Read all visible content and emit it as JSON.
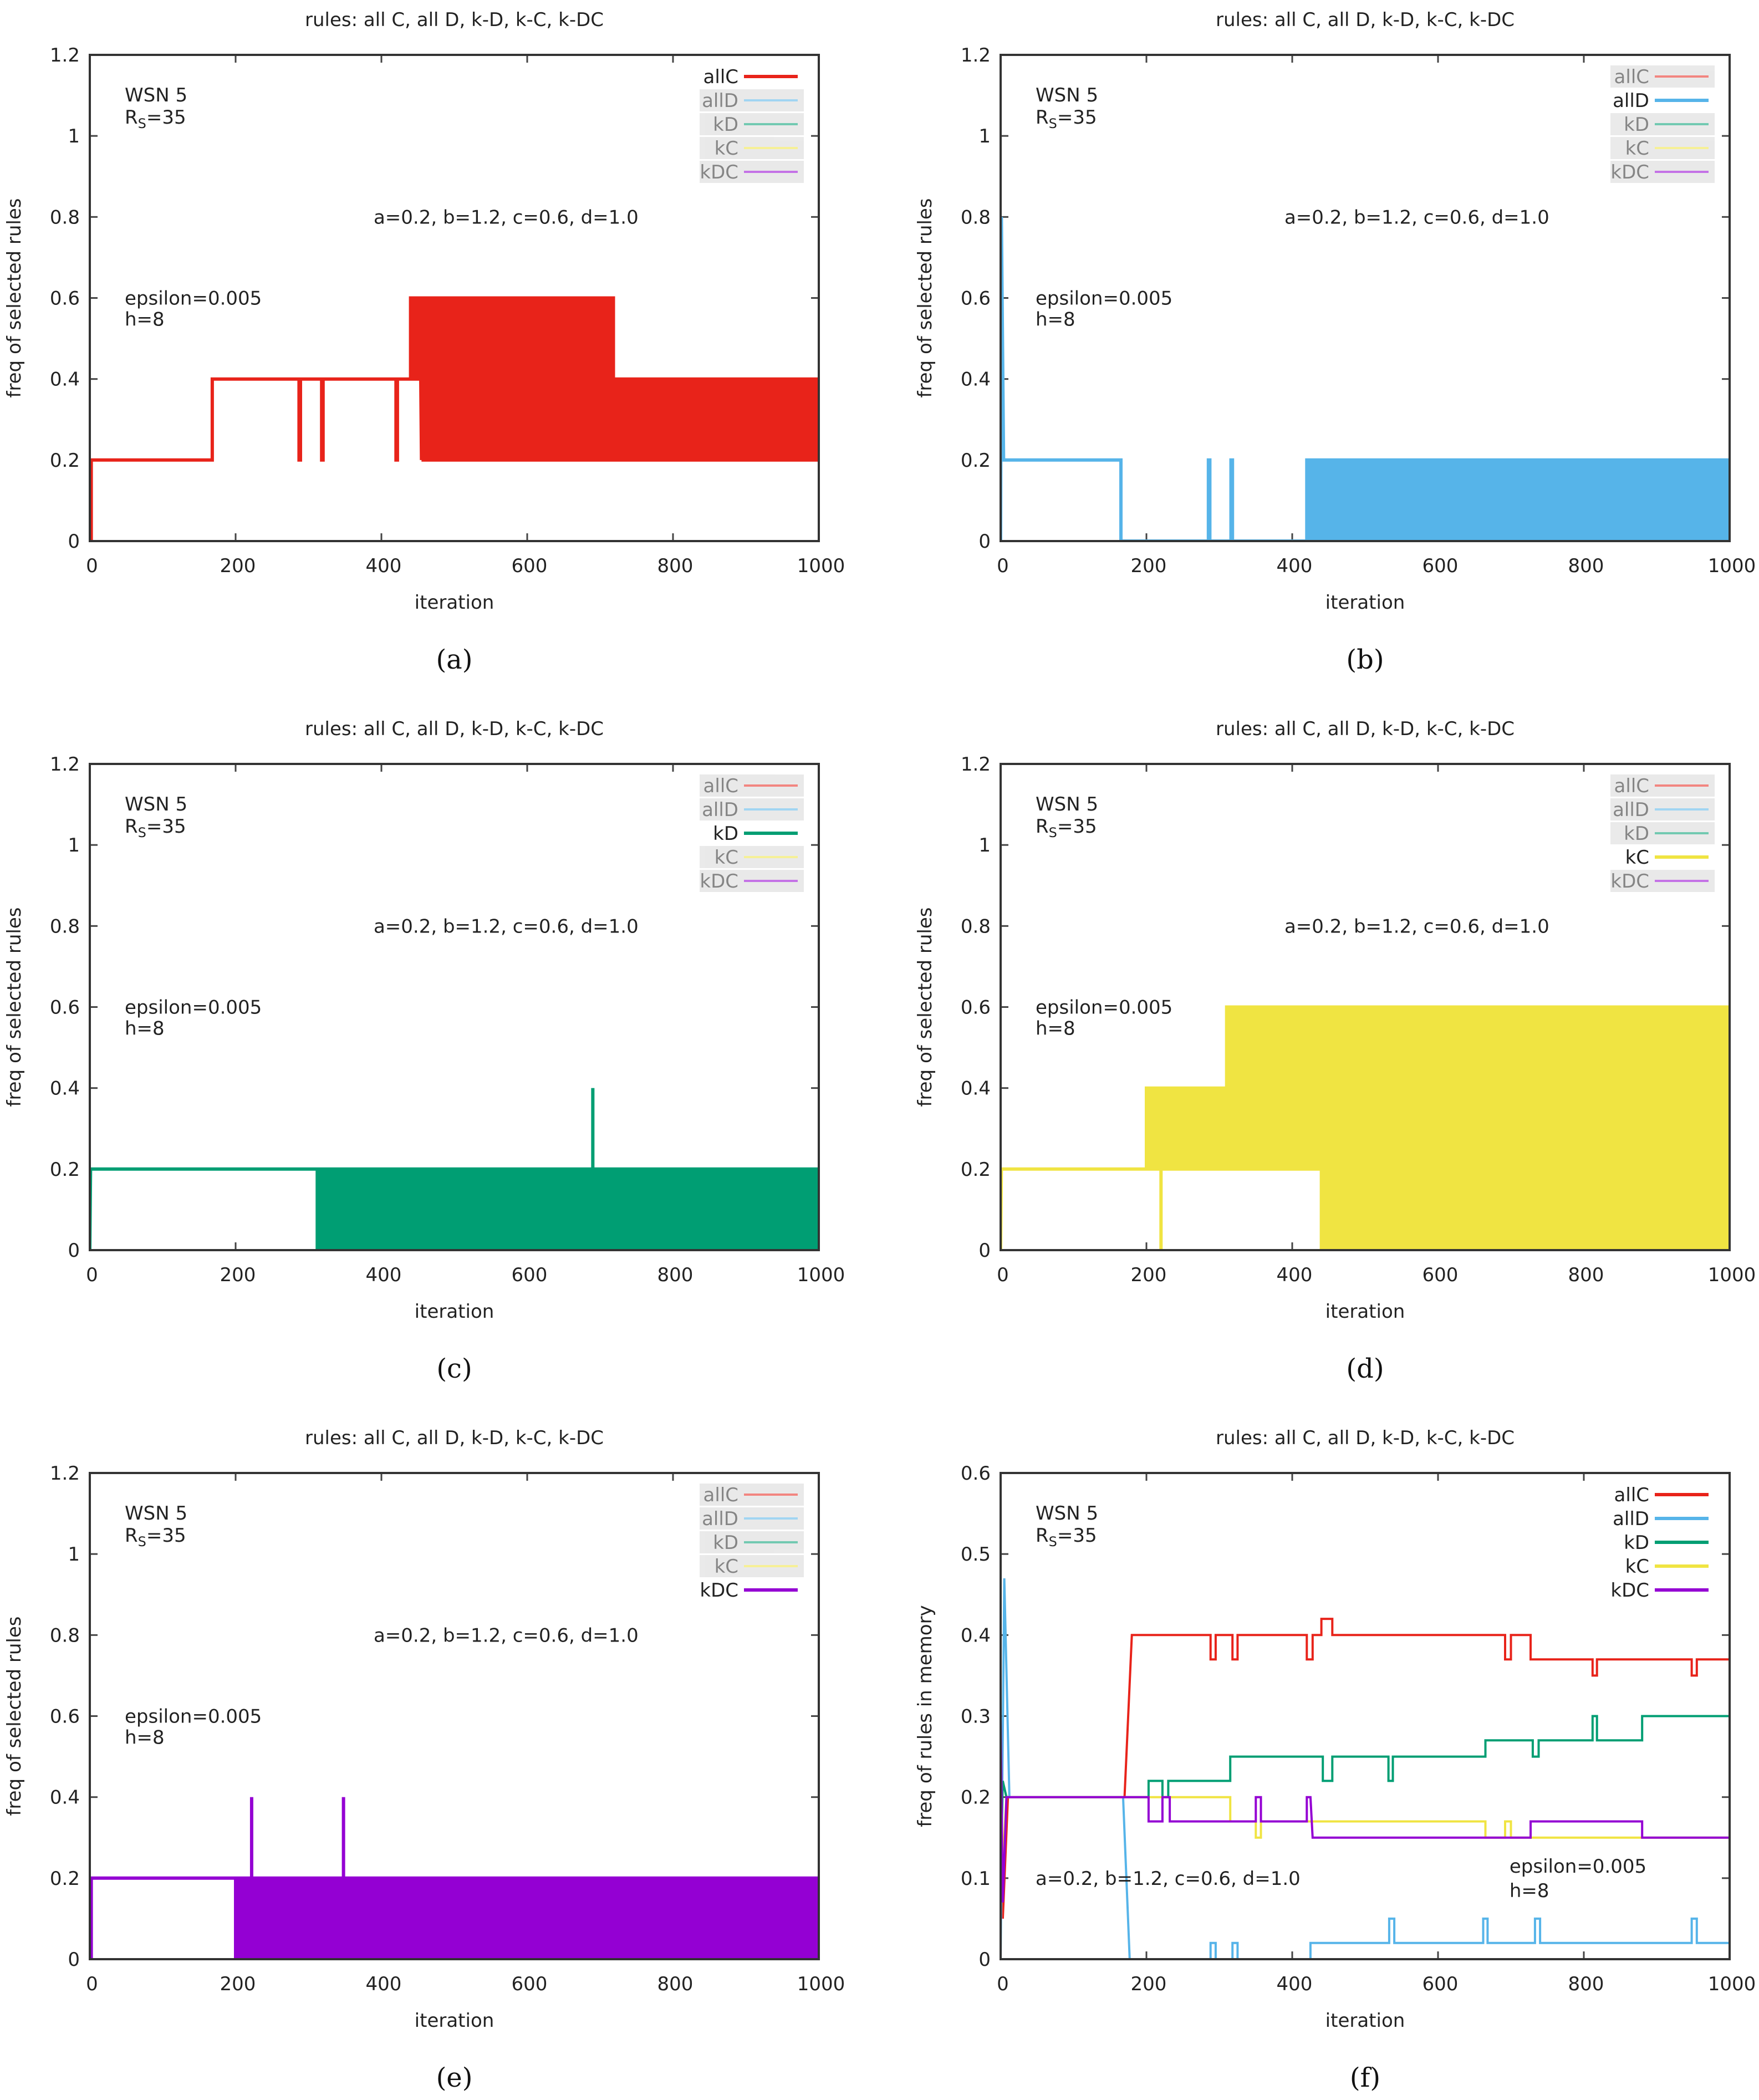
{
  "legend_names": [
    "allC",
    "allD",
    "kD",
    "kC",
    "kDC"
  ],
  "colors": {
    "allC": "#e8231a",
    "allD": "#56b4e9",
    "kD": "#009e73",
    "kC": "#f0e442",
    "kDC": "#9400d3"
  },
  "annotations": {
    "wsn": "WSN 5",
    "rs_main": "R",
    "rs_sub": "S",
    "rs_value": "=35",
    "params": "a=0.2, b=1.2, c=0.6, d=1.0",
    "epsilon": "epsilon=0.005",
    "h": "h=8"
  },
  "chart_data": [
    {
      "id": "a",
      "caption": "(a)",
      "type": "line",
      "title": "rules: all C, all D, k-D, k-C, k-DC",
      "xlabel": "iteration",
      "ylabel": "freq of selected rules",
      "xlim": [
        0,
        1000
      ],
      "ylim": [
        0,
        1.2
      ],
      "xticks": [
        "0",
        "200",
        "400",
        "600",
        "800",
        "1000"
      ],
      "yticks": [
        "0",
        "0.2",
        "0.4",
        "0.6",
        "0.8",
        "1",
        "1.2"
      ],
      "highlight": "allC",
      "series": [
        {
          "name": "allC",
          "points": [
            [
              0,
              0
            ],
            [
              2,
              0
            ],
            [
              2,
              0.2
            ],
            [
              168,
              0.2
            ],
            [
              168,
              0.4
            ],
            [
              287,
              0.4
            ],
            [
              287,
              0.2
            ],
            [
              289,
              0.2
            ],
            [
              289,
              0.4
            ],
            [
              318,
              0.4
            ],
            [
              318,
              0.2
            ],
            [
              320,
              0.2
            ],
            [
              320,
              0.4
            ],
            [
              420,
              0.4
            ],
            [
              420,
              0.2
            ],
            [
              422,
              0.2
            ],
            [
              422,
              0.4
            ],
            [
              440,
              0.4
            ]
          ],
          "oscillations": [
            [
              440,
              455,
              0.4,
              0.6,
              4
            ],
            [
              455,
              720,
              0.2,
              0.6,
              4.5
            ],
            [
              720,
              1000,
              0.2,
              0.4,
              4.5
            ]
          ]
        }
      ]
    },
    {
      "id": "b",
      "caption": "(b)",
      "type": "line",
      "title": "rules: all C, all D, k-D, k-C, k-DC",
      "xlabel": "iteration",
      "ylabel": "freq of selected rules",
      "xlim": [
        0,
        1000
      ],
      "ylim": [
        0,
        1.2
      ],
      "xticks": [
        "0",
        "200",
        "400",
        "600",
        "800",
        "1000"
      ],
      "yticks": [
        "0",
        "0.2",
        "0.4",
        "0.6",
        "0.8",
        "1",
        "1.2"
      ],
      "highlight": "allD",
      "series": [
        {
          "name": "allD",
          "points": [
            [
              0,
              0
            ],
            [
              1,
              0.8
            ],
            [
              4,
              0.2
            ],
            [
              165,
              0.2
            ],
            [
              165,
              0
            ],
            [
              285,
              0
            ],
            [
              285,
              0.2
            ],
            [
              287,
              0.2
            ],
            [
              287,
              0
            ],
            [
              316,
              0
            ],
            [
              316,
              0.2
            ],
            [
              318,
              0.2
            ],
            [
              318,
              0
            ],
            [
              420,
              0
            ]
          ],
          "oscillations": [
            [
              420,
              1000,
              0,
              0.2,
              4.5
            ]
          ]
        }
      ]
    },
    {
      "id": "c",
      "caption": "(c)",
      "type": "line",
      "title": "rules: all C, all D, k-D, k-C, k-DC",
      "xlabel": "iteration",
      "ylabel": "freq of selected rules",
      "xlim": [
        0,
        1000
      ],
      "ylim": [
        0,
        1.2
      ],
      "xticks": [
        "0",
        "200",
        "400",
        "600",
        "800",
        "1000"
      ],
      "yticks": [
        "0",
        "0.2",
        "0.4",
        "0.6",
        "0.8",
        "1",
        "1.2"
      ],
      "highlight": "kD",
      "series": [
        {
          "name": "kD",
          "points": [
            [
              0,
              0
            ],
            [
              1,
              0.2
            ],
            [
              312,
              0.2
            ],
            [
              312,
              0
            ],
            [
              312,
              0.2
            ]
          ],
          "oscillations": [
            [
              312,
              1000,
              0,
              0.2,
              4.5
            ]
          ],
          "spikes": [
            [
              690,
              0.2,
              0.4
            ]
          ]
        }
      ]
    },
    {
      "id": "d",
      "caption": "(d)",
      "type": "line",
      "title": "rules: all C, all D, k-D, k-C, k-DC",
      "xlabel": "iteration",
      "ylabel": "freq of selected rules",
      "xlim": [
        0,
        1000
      ],
      "ylim": [
        0,
        1.2
      ],
      "xticks": [
        "0",
        "200",
        "400",
        "600",
        "800",
        "1000"
      ],
      "yticks": [
        "0",
        "0.2",
        "0.4",
        "0.6",
        "0.8",
        "1",
        "1.2"
      ],
      "highlight": "kC",
      "series": [
        {
          "name": "kC",
          "points": [
            [
              0,
              0
            ],
            [
              1,
              0.2
            ],
            [
              200,
              0.2
            ]
          ],
          "oscillations": [
            [
              200,
              310,
              0.2,
              0.4,
              4
            ],
            [
              310,
              440,
              0.2,
              0.6,
              4
            ],
            [
              440,
              1000,
              0,
              0.6,
              3
            ]
          ],
          "spikes": [
            [
              220,
              0,
              0.2
            ]
          ]
        }
      ]
    },
    {
      "id": "e",
      "caption": "(e)",
      "type": "line",
      "title": "rules: all C, all D, k-D, k-C, k-DC",
      "xlabel": "iteration",
      "ylabel": "freq of selected rules",
      "xlim": [
        0,
        1000
      ],
      "ylim": [
        0,
        1.2
      ],
      "xticks": [
        "0",
        "200",
        "400",
        "600",
        "800",
        "1000"
      ],
      "yticks": [
        "0",
        "0.2",
        "0.4",
        "0.6",
        "0.8",
        "1",
        "1.2"
      ],
      "highlight": "kDC",
      "series": [
        {
          "name": "kDC",
          "points": [
            [
              0,
              0
            ],
            [
              2,
              0
            ],
            [
              2,
              0.2
            ],
            [
              200,
              0.2
            ]
          ],
          "oscillations": [
            [
              200,
              418,
              0,
              0.2,
              4.5
            ],
            [
              422,
              720,
              0,
              0.2,
              2
            ],
            [
              720,
              1000,
              0,
              0.2,
              3.5
            ]
          ],
          "spikes": [
            [
              222,
              0.2,
              0.4
            ],
            [
              348,
              0.2,
              0.4
            ]
          ]
        }
      ]
    },
    {
      "id": "f",
      "caption": "(f)",
      "type": "line",
      "title": "rules: all C, all D, k-D, k-C, k-DC",
      "xlabel": "iteration",
      "ylabel": "freq of rules in memory",
      "xlim": [
        0,
        1000
      ],
      "ylim": [
        0,
        0.6
      ],
      "xticks": [
        "0",
        "200",
        "400",
        "600",
        "800",
        "1000"
      ],
      "yticks": [
        "0",
        "0.1",
        "0.2",
        "0.3",
        "0.4",
        "0.5",
        "0.6"
      ],
      "highlight": "all",
      "series": [
        {
          "name": "allC",
          "points": [
            [
              0,
              0.25
            ],
            [
              3,
              0.05
            ],
            [
              10,
              0.2
            ],
            [
              170,
              0.2
            ],
            [
              180,
              0.4
            ],
            [
              288,
              0.4
            ],
            [
              288,
              0.37
            ],
            [
              295,
              0.37
            ],
            [
              295,
              0.4
            ],
            [
              318,
              0.4
            ],
            [
              318,
              0.37
            ],
            [
              325,
              0.37
            ],
            [
              325,
              0.4
            ],
            [
              420,
              0.4
            ],
            [
              420,
              0.37
            ],
            [
              428,
              0.37
            ],
            [
              428,
              0.4
            ],
            [
              440,
              0.4
            ],
            [
              440,
              0.42
            ],
            [
              455,
              0.42
            ],
            [
              455,
              0.4
            ],
            [
              692,
              0.4
            ],
            [
              692,
              0.37
            ],
            [
              700,
              0.37
            ],
            [
              700,
              0.4
            ],
            [
              727,
              0.4
            ],
            [
              727,
              0.37
            ],
            [
              812,
              0.37
            ],
            [
              812,
              0.35
            ],
            [
              818,
              0.35
            ],
            [
              818,
              0.37
            ],
            [
              948,
              0.37
            ],
            [
              948,
              0.35
            ],
            [
              955,
              0.35
            ],
            [
              955,
              0.37
            ],
            [
              1000,
              0.37
            ]
          ]
        },
        {
          "name": "allD",
          "points": [
            [
              0,
              0
            ],
            [
              5,
              0.47
            ],
            [
              12,
              0.2
            ],
            [
              168,
              0.2
            ],
            [
              177,
              0
            ],
            [
              288,
              0
            ],
            [
              288,
              0.02
            ],
            [
              295,
              0.02
            ],
            [
              295,
              0
            ],
            [
              318,
              0
            ],
            [
              318,
              0.02
            ],
            [
              325,
              0.02
            ],
            [
              325,
              0
            ],
            [
              425,
              0
            ],
            [
              425,
              0.02
            ],
            [
              533,
              0.02
            ],
            [
              533,
              0.05
            ],
            [
              540,
              0.05
            ],
            [
              540,
              0.02
            ],
            [
              662,
              0.02
            ],
            [
              662,
              0.05
            ],
            [
              668,
              0.05
            ],
            [
              668,
              0.02
            ],
            [
              733,
              0.02
            ],
            [
              733,
              0.05
            ],
            [
              740,
              0.05
            ],
            [
              740,
              0.02
            ],
            [
              948,
              0.02
            ],
            [
              948,
              0.05
            ],
            [
              955,
              0.05
            ],
            [
              955,
              0.02
            ],
            [
              1000,
              0.02
            ]
          ]
        },
        {
          "name": "kD",
          "points": [
            [
              0,
              0.1
            ],
            [
              3,
              0.22
            ],
            [
              8,
              0.2
            ],
            [
              203,
              0.2
            ],
            [
              203,
              0.22
            ],
            [
              222,
              0.22
            ],
            [
              222,
              0.2
            ],
            [
              230,
              0.2
            ],
            [
              230,
              0.22
            ],
            [
              315,
              0.22
            ],
            [
              315,
              0.25
            ],
            [
              442,
              0.25
            ],
            [
              442,
              0.22
            ],
            [
              455,
              0.22
            ],
            [
              455,
              0.25
            ],
            [
              532,
              0.25
            ],
            [
              532,
              0.22
            ],
            [
              538,
              0.22
            ],
            [
              538,
              0.25
            ],
            [
              665,
              0.25
            ],
            [
              665,
              0.27
            ],
            [
              730,
              0.27
            ],
            [
              730,
              0.25
            ],
            [
              738,
              0.25
            ],
            [
              738,
              0.27
            ],
            [
              812,
              0.27
            ],
            [
              812,
              0.3
            ],
            [
              818,
              0.3
            ],
            [
              818,
              0.27
            ],
            [
              880,
              0.27
            ],
            [
              880,
              0.3
            ],
            [
              1000,
              0.3
            ]
          ]
        },
        {
          "name": "kC",
          "points": [
            [
              0,
              0.2
            ],
            [
              3,
              0.12
            ],
            [
              8,
              0.2
            ],
            [
              315,
              0.2
            ],
            [
              315,
              0.17
            ],
            [
              350,
              0.17
            ],
            [
              350,
              0.15
            ],
            [
              357,
              0.15
            ],
            [
              357,
              0.17
            ],
            [
              665,
              0.17
            ],
            [
              665,
              0.15
            ],
            [
              692,
              0.15
            ],
            [
              692,
              0.17
            ],
            [
              700,
              0.17
            ],
            [
              700,
              0.15
            ],
            [
              1000,
              0.15
            ]
          ]
        },
        {
          "name": "kDC",
          "points": [
            [
              0,
              0.3
            ],
            [
              3,
              0.07
            ],
            [
              8,
              0.2
            ],
            [
              203,
              0.2
            ],
            [
              203,
              0.17
            ],
            [
              222,
              0.17
            ],
            [
              222,
              0.2
            ],
            [
              232,
              0.2
            ],
            [
              232,
              0.17
            ],
            [
              350,
              0.17
            ],
            [
              350,
              0.2
            ],
            [
              357,
              0.2
            ],
            [
              357,
              0.17
            ],
            [
              420,
              0.17
            ],
            [
              420,
              0.2
            ],
            [
              425,
              0.2
            ],
            [
              428,
              0.15
            ],
            [
              727,
              0.15
            ],
            [
              727,
              0.17
            ],
            [
              880,
              0.17
            ],
            [
              880,
              0.15
            ],
            [
              1000,
              0.15
            ]
          ]
        }
      ]
    }
  ]
}
